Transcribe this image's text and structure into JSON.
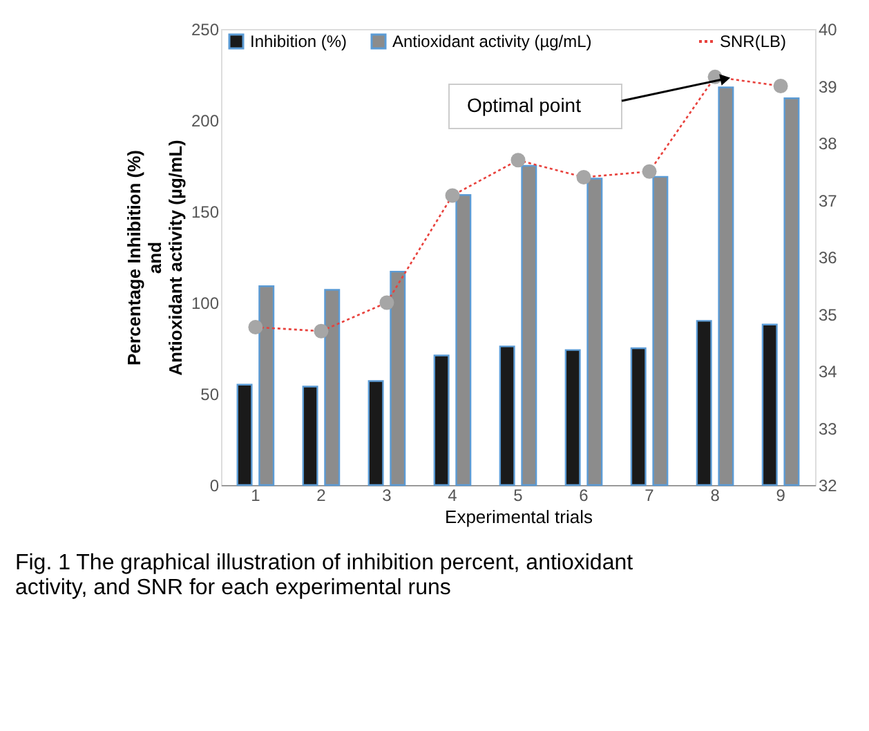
{
  "chart_data": {
    "type": "bar",
    "categories": [
      "1",
      "2",
      "3",
      "4",
      "5",
      "6",
      "7",
      "8",
      "9"
    ],
    "series": [
      {
        "name": "Inhibition (%)",
        "color": "#1a1a1a",
        "values": [
          55,
          54,
          57,
          71,
          76,
          74,
          75,
          90,
          88
        ]
      },
      {
        "name": "Antioxidant activity (µg/mL)",
        "color": "#8c8c8c",
        "values": [
          109,
          107,
          117,
          159,
          175,
          168,
          169,
          218,
          212
        ]
      },
      {
        "name": "SNR(LB)",
        "type": "line",
        "axis": "y2",
        "color": "#e8413c",
        "line_style": "dotted",
        "marker": "circle",
        "values": [
          34.77,
          34.7,
          35.2,
          37.08,
          37.7,
          37.4,
          37.5,
          39.16,
          39.0
        ]
      }
    ],
    "xlabel": "Experimental trials",
    "ylabel": "Percentage Inhibition (%)\nand\nAntioxidant activity (µg/mL)",
    "ylim": [
      0,
      250
    ],
    "yticks": [
      0,
      50,
      100,
      150,
      200,
      250
    ],
    "y2lim": [
      32,
      40
    ],
    "y2ticks": [
      32,
      33,
      34,
      35,
      36,
      37,
      38,
      39,
      40
    ],
    "grid": false,
    "legend": "top",
    "annotations": [
      "Optimal point",
      "Fig. 1 The graphical illustration of inhibition percent, antioxidant\nactivity, and SNR for each experimental runs"
    ]
  }
}
